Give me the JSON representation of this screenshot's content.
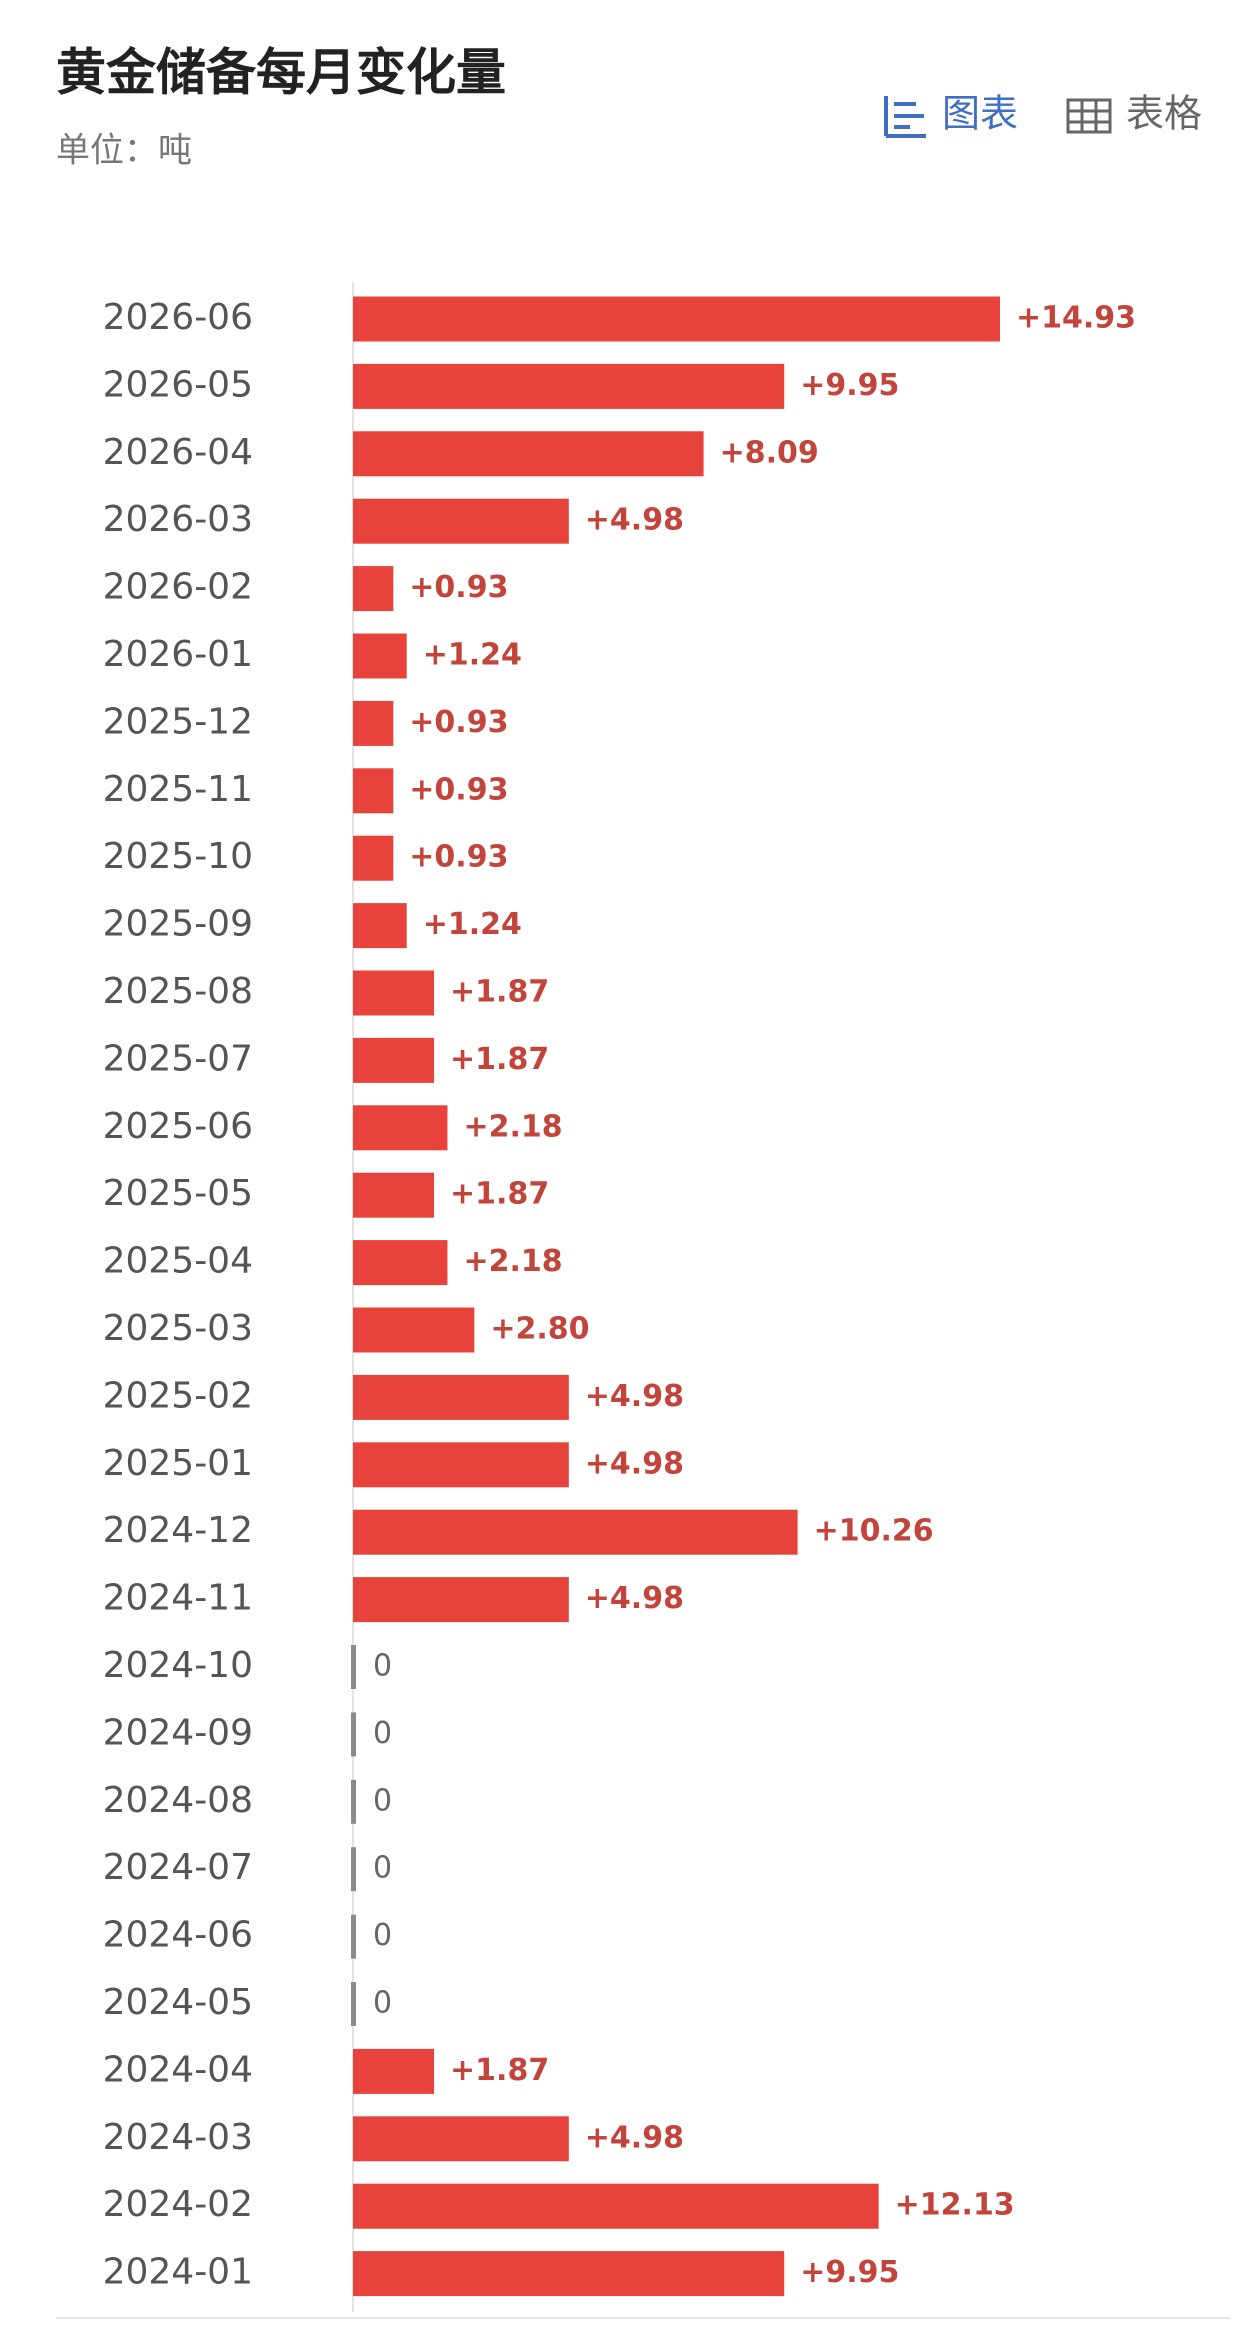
{
  "chart_data": {
    "type": "bar",
    "orientation": "horizontal",
    "title": "黄金储备每月变化量",
    "subtitle": "单位：吨",
    "tabs": [
      "图表",
      "表格"
    ],
    "categories": [
      "2026-06",
      "2026-05",
      "2026-04",
      "2026-03",
      "2026-02",
      "2026-01",
      "2025-12",
      "2025-11",
      "2025-10",
      "2025-09",
      "2025-08",
      "2025-07",
      "2025-06",
      "2025-05",
      "2025-04",
      "2025-03",
      "2025-02",
      "2025-01",
      "2024-12",
      "2024-11",
      "2024-10",
      "2024-09",
      "2024-08",
      "2024-07",
      "2024-06",
      "2024-05",
      "2024-04",
      "2024-03",
      "2024-02",
      "2024-01"
    ],
    "values": [
      14.93,
      9.95,
      8.09,
      4.98,
      0.93,
      1.24,
      0.93,
      0.93,
      0.93,
      1.24,
      1.87,
      1.87,
      2.18,
      1.87,
      2.18,
      2.8,
      4.98,
      4.98,
      10.26,
      4.98,
      0,
      0,
      0,
      0,
      0,
      0,
      1.87,
      4.98,
      12.13,
      9.95
    ],
    "value_labels": [
      "+14.93",
      "+9.95",
      "+8.09",
      "+4.98",
      "+0.93",
      "+1.24",
      "+0.93",
      "+0.93",
      "+0.93",
      "+1.24",
      "+1.87",
      "+1.87",
      "+2.18",
      "+1.87",
      "+2.18",
      "+2.80",
      "+4.98",
      "+4.98",
      "+10.26",
      "+4.98",
      "0",
      "0",
      "0",
      "0",
      "0",
      "0",
      "+1.87",
      "+4.98",
      "+12.13",
      "+9.95"
    ],
    "color": "#e8433b",
    "label_color": "#c2443b",
    "zero_color": "#8a8a8a"
  }
}
